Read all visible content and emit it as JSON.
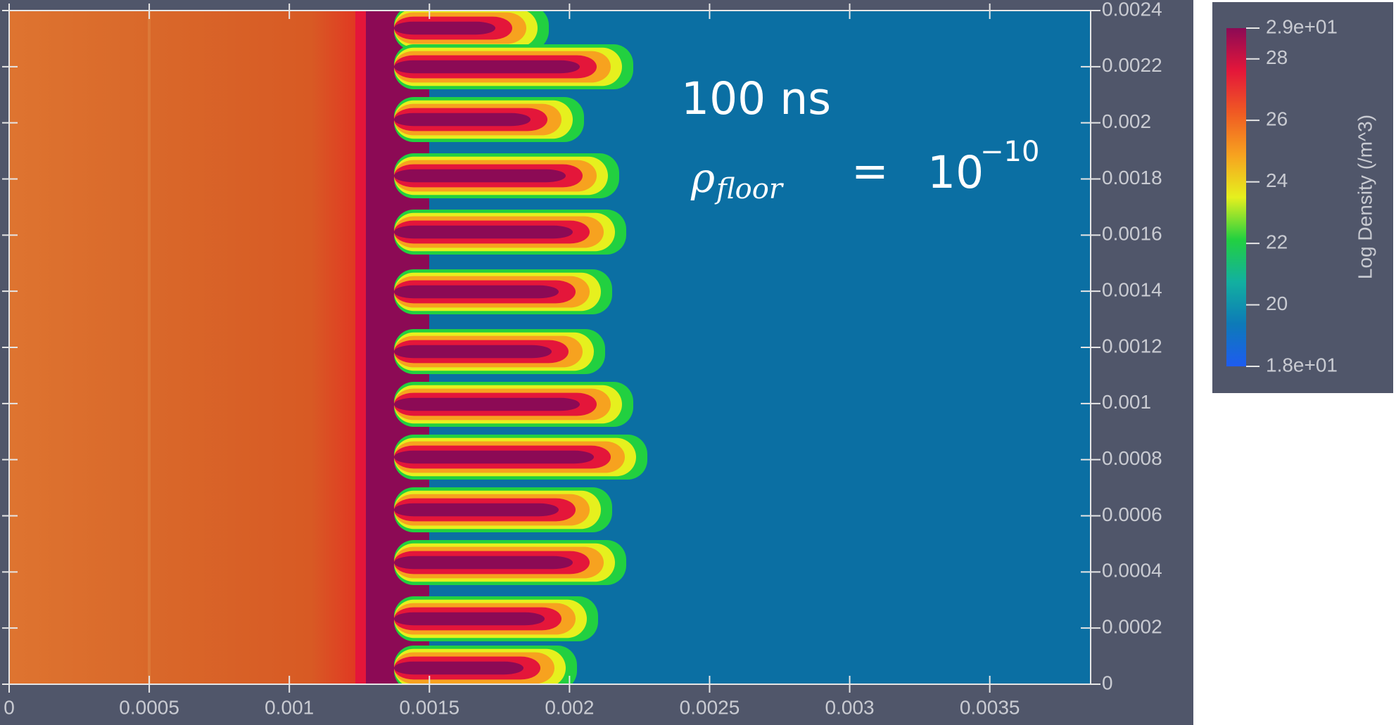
{
  "chart_data": {
    "type": "field",
    "annotations": {
      "time": "100 ns",
      "rho": "ρ",
      "subscript": "floor",
      "equals": "=",
      "base": "10",
      "exponent": "−10"
    },
    "xlim": [
      0,
      0.00386
    ],
    "xticks": [
      0,
      0.0005,
      0.001,
      0.0015,
      0.002,
      0.0025,
      0.003,
      0.0035
    ],
    "ylim": [
      0,
      0.0024
    ],
    "yticks": [
      0,
      0.0002,
      0.0004,
      0.0006,
      0.0008,
      0.001,
      0.0012,
      0.0014,
      0.0016,
      0.0018,
      0.002,
      0.0022,
      0.0024
    ],
    "grid": false,
    "colorbar": {
      "title": "Log Density (/m^3)",
      "lim": [
        18,
        29
      ],
      "ticks": [
        {
          "value": 29,
          "label": "2.9e+01"
        },
        28,
        26,
        24,
        22,
        20,
        {
          "value": 18,
          "label": "1.8e+01"
        }
      ],
      "colormap": [
        "#1e5cf0",
        "#0d7ab8",
        "#12b0a0",
        "#22d040",
        "#e6f01e",
        "#f7a21f",
        "#f05a23",
        "#e4163a",
        "#8c0a55"
      ]
    }
  }
}
